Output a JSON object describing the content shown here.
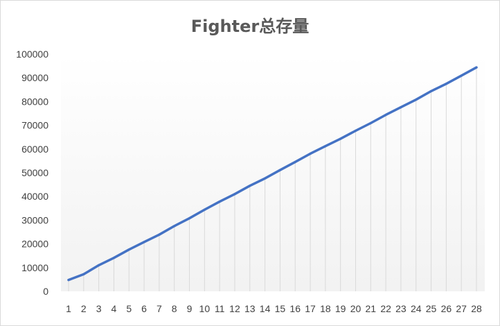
{
  "chart_data": {
    "type": "line",
    "title": "Fighter总存量",
    "xlabel": "",
    "ylabel": "",
    "categories": [
      1,
      2,
      3,
      4,
      5,
      6,
      7,
      8,
      9,
      10,
      11,
      12,
      13,
      14,
      15,
      16,
      17,
      18,
      19,
      20,
      21,
      22,
      23,
      24,
      25,
      26,
      27,
      28
    ],
    "series": [
      {
        "values": [
          4800,
          7200,
          11000,
          14100,
          17600,
          20800,
          23900,
          27500,
          30800,
          34400,
          37800,
          41000,
          44500,
          47600,
          51100,
          54500,
          58000,
          61200,
          64300,
          67700,
          70900,
          74400,
          77600,
          80800,
          84400,
          87500,
          90900,
          94400
        ]
      }
    ],
    "ylim": [
      0,
      100000
    ],
    "yticks": [
      0,
      10000,
      20000,
      30000,
      40000,
      50000,
      60000,
      70000,
      80000,
      90000,
      100000
    ],
    "grid": "vertical drop lines",
    "legend": "none",
    "colors": {
      "line": "#4472c4",
      "droplines": "#d9d9d9",
      "title": "#595959",
      "tick_text": "#404040"
    }
  }
}
